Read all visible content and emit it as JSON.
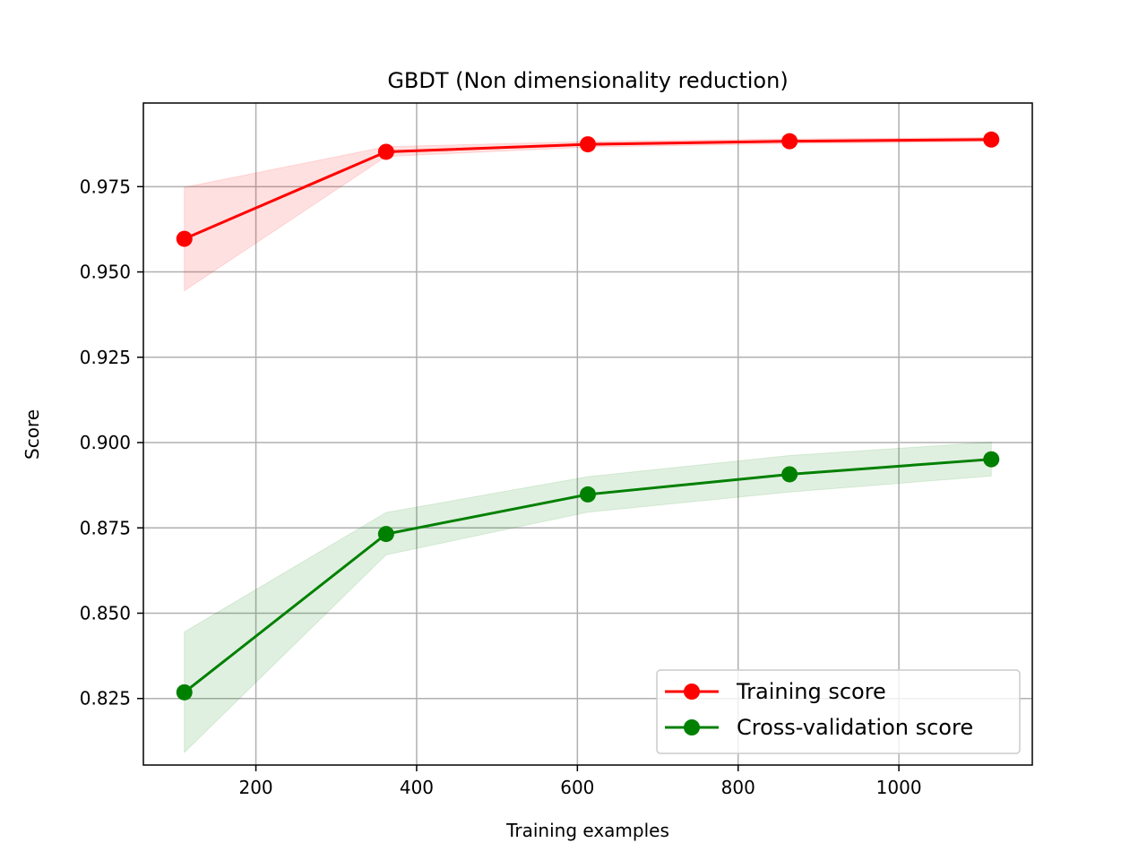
{
  "chart_data": {
    "type": "line",
    "title": "GBDT (Non dimensionality reduction)",
    "xlabel": "Training examples",
    "ylabel": "Score",
    "xlim": [
      60,
      1166
    ],
    "ylim": [
      0.8055,
      0.9995
    ],
    "xticks": [
      200,
      400,
      600,
      800,
      1000
    ],
    "xtick_labels": [
      "200",
      "400",
      "600",
      "800",
      "1000"
    ],
    "yticks": [
      0.825,
      0.85,
      0.875,
      0.9,
      0.925,
      0.95,
      0.975
    ],
    "ytick_labels": [
      "0.825",
      "0.850",
      "0.875",
      "0.900",
      "0.925",
      "0.950",
      "0.975"
    ],
    "grid": true,
    "legend_position": "lower-right",
    "x": [
      111,
      362,
      613,
      864,
      1115
    ],
    "series": [
      {
        "name": "Training score",
        "color": "#ff0000",
        "marker": "circle",
        "values": [
          0.9597,
          0.9852,
          0.9874,
          0.9883,
          0.9888
        ],
        "band_lower": [
          0.9445,
          0.9838,
          0.9866,
          0.9876,
          0.9882
        ],
        "band_upper": [
          0.9748,
          0.9867,
          0.9882,
          0.989,
          0.9894
        ]
      },
      {
        "name": "Cross-validation score",
        "color": "#008000",
        "marker": "circle",
        "values": [
          0.8268,
          0.8732,
          0.8848,
          0.8907,
          0.8951
        ],
        "band_lower": [
          0.8092,
          0.8671,
          0.8796,
          0.8855,
          0.8902
        ],
        "band_upper": [
          0.8445,
          0.8795,
          0.89,
          0.8962,
          0.9001
        ]
      }
    ]
  }
}
